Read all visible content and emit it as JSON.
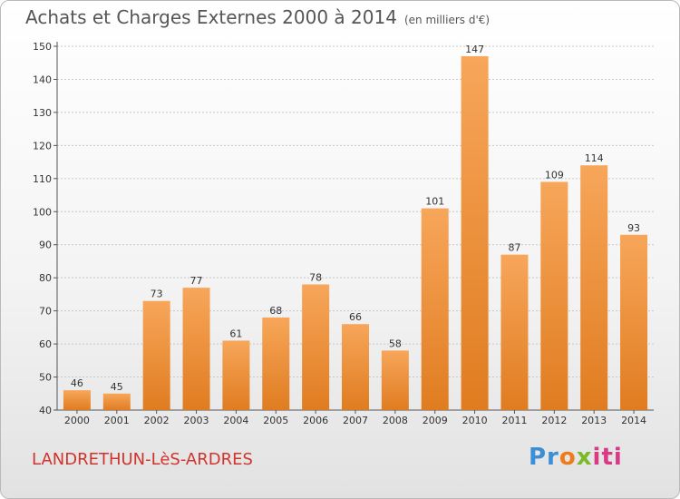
{
  "title": "Achats et Charges Externes 2000 à 2014",
  "unit": "(en milliers d'€)",
  "commune": "LANDRETHUN-LèS-ARDRES",
  "logo": {
    "p1": "Pr",
    "p2": "o",
    "p3": "x",
    "p4": "iti"
  },
  "colors": {
    "bar_top": "#f7a65a",
    "bar_bottom": "#e07c20",
    "commune": "#d0342c"
  },
  "chart_data": {
    "type": "bar",
    "title": "Achats et Charges Externes 2000 à 2014",
    "subtitle": "(en milliers d'€)",
    "categories": [
      "2000",
      "2001",
      "2002",
      "2003",
      "2004",
      "2005",
      "2006",
      "2007",
      "2008",
      "2009",
      "2010",
      "2011",
      "2012",
      "2013",
      "2014"
    ],
    "values": [
      46,
      45,
      73,
      77,
      61,
      68,
      78,
      66,
      58,
      101,
      147,
      87,
      109,
      114,
      93
    ],
    "yticks": [
      40,
      50,
      60,
      70,
      80,
      90,
      100,
      110,
      120,
      130,
      140,
      150
    ],
    "ylim": [
      40,
      150
    ],
    "grid": true,
    "legend": "none"
  }
}
